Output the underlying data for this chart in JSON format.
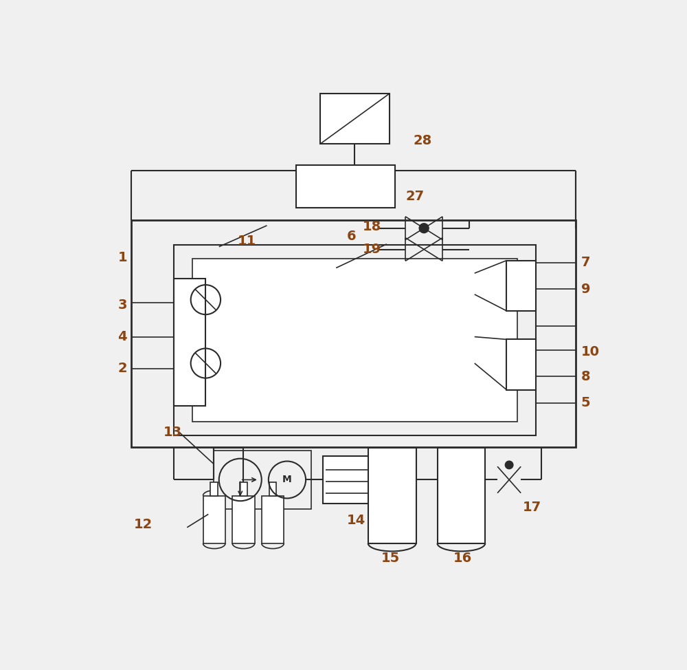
{
  "bg_color": "#f0f0f0",
  "line_color": "#2a2a2a",
  "label_color": "#8B4513",
  "fig_width": 10.0,
  "fig_height": 9.74,
  "dpi": 100
}
